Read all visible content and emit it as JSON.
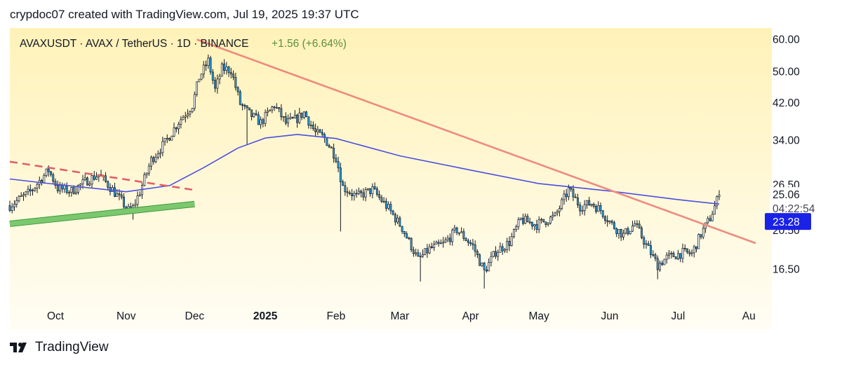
{
  "header": {
    "caption": "crypdoc07 created with TradingView.com, Jul 19, 2025 19:37 UTC"
  },
  "footer": {
    "brand": "TradingView",
    "logo_icon": "tradingview-logo-icon"
  },
  "colors": {
    "background_top": "#fff2b8",
    "background_bottom": "#fffdf4",
    "bull_candle": "#ffffff",
    "bear_candle": "#2aa7e6",
    "candle_outline": "#131722",
    "moving_average": "#4a4ee0",
    "downtrend_line": "#ee8a7f",
    "dashed_line": "#e0606a",
    "support_channel": "#7cc86f",
    "current_price_bg": "#1a22e6",
    "axis_text": "#131722"
  },
  "chart_data": {
    "type": "candlestick",
    "title": "AVAXUSDT · AVAX / TetherUS · 1D · BINANCE",
    "change": "+1.56 (+6.64%)",
    "price_axis": {
      "scale": "log",
      "range": [
        13.2,
        64
      ],
      "ticks": [
        "60.00",
        "50.00",
        "42.00",
        "34.00",
        "26.50",
        "20.50",
        "16.50"
      ]
    },
    "x_axis": {
      "ticks": [
        {
          "label": "Oct",
          "date": "2024-10-01"
        },
        {
          "label": "Nov",
          "date": "2024-11-01"
        },
        {
          "label": "Dec",
          "date": "2024-12-01"
        },
        {
          "label": "2025",
          "date": "2025-01-01",
          "bold": true
        },
        {
          "label": "Feb",
          "date": "2025-02-01"
        },
        {
          "label": "Mar",
          "date": "2025-03-01"
        },
        {
          "label": "Apr",
          "date": "2025-04-01"
        },
        {
          "label": "May",
          "date": "2025-05-01"
        },
        {
          "label": "Jun",
          "date": "2025-06-01"
        },
        {
          "label": "Jul",
          "date": "2025-07-01"
        },
        {
          "label": "Au",
          "date": "2025-08-01"
        }
      ]
    },
    "range_start": "2024-09-11",
    "range_end": "2025-08-08",
    "price_keypoints": [
      [
        "2024-09-11",
        23.6
      ],
      [
        "2024-09-20",
        25.5
      ],
      [
        "2024-09-28",
        28.8
      ],
      [
        "2024-10-02",
        26.0
      ],
      [
        "2024-10-08",
        25.6
      ],
      [
        "2024-10-15",
        27.2
      ],
      [
        "2024-10-20",
        28.1
      ],
      [
        "2024-10-26",
        25.8
      ],
      [
        "2024-11-03",
        22.6
      ],
      [
        "2024-11-07",
        25.5
      ],
      [
        "2024-11-12",
        30.5
      ],
      [
        "2024-11-18",
        33.6
      ],
      [
        "2024-11-24",
        37.8
      ],
      [
        "2024-11-30",
        41.5
      ],
      [
        "2024-12-03",
        48.5
      ],
      [
        "2024-12-07",
        53.2
      ],
      [
        "2024-12-10",
        45.2
      ],
      [
        "2024-12-13",
        51.0
      ],
      [
        "2024-12-17",
        50.5
      ],
      [
        "2024-12-21",
        41.8
      ],
      [
        "2024-12-25",
        39.5
      ],
      [
        "2024-12-30",
        37.6
      ],
      [
        "2025-01-05",
        41.5
      ],
      [
        "2025-01-10",
        37.5
      ],
      [
        "2025-01-15",
        38.5
      ],
      [
        "2025-01-18",
        39.8
      ],
      [
        "2025-01-23",
        35.5
      ],
      [
        "2025-01-27",
        34.5
      ],
      [
        "2025-02-01",
        31.0
      ],
      [
        "2025-02-04",
        26.2
      ],
      [
        "2025-02-10",
        24.8
      ],
      [
        "2025-02-17",
        25.8
      ],
      [
        "2025-02-24",
        23.2
      ],
      [
        "2025-03-02",
        20.8
      ],
      [
        "2025-03-09",
        17.4
      ],
      [
        "2025-03-14",
        18.5
      ],
      [
        "2025-03-20",
        19.0
      ],
      [
        "2025-03-26",
        20.6
      ],
      [
        "2025-04-02",
        18.8
      ],
      [
        "2025-04-07",
        16.3
      ],
      [
        "2025-04-12",
        18.2
      ],
      [
        "2025-04-18",
        19.2
      ],
      [
        "2025-04-23",
        21.8
      ],
      [
        "2025-04-30",
        21.2
      ],
      [
        "2025-05-08",
        22.2
      ],
      [
        "2025-05-14",
        25.8
      ],
      [
        "2025-05-19",
        23.5
      ],
      [
        "2025-05-24",
        23.9
      ],
      [
        "2025-05-28",
        23.0
      ],
      [
        "2025-06-02",
        21.2
      ],
      [
        "2025-06-07",
        20.0
      ],
      [
        "2025-06-12",
        21.3
      ],
      [
        "2025-06-17",
        18.9
      ],
      [
        "2025-06-22",
        16.9
      ],
      [
        "2025-06-26",
        17.6
      ],
      [
        "2025-07-03",
        18.1
      ],
      [
        "2025-07-07",
        18.0
      ],
      [
        "2025-07-11",
        20.1
      ],
      [
        "2025-07-15",
        22.0
      ],
      [
        "2025-07-19",
        25.06
      ]
    ],
    "wick_extremes": [
      {
        "date": "2024-11-04",
        "low": 21.8
      },
      {
        "date": "2024-12-24",
        "low": 33.2
      },
      {
        "date": "2025-01-27",
        "low": 33.6
      },
      {
        "date": "2025-02-03",
        "low": 20.4
      },
      {
        "date": "2025-03-10",
        "low": 15.4
      },
      {
        "date": "2025-04-07",
        "low": 14.8
      },
      {
        "date": "2025-06-22",
        "low": 15.6
      }
    ],
    "moving_average": [
      [
        "2024-09-11",
        27.4
      ],
      [
        "2024-10-01",
        26.6
      ],
      [
        "2024-11-01",
        25.5
      ],
      [
        "2024-11-20",
        26.4
      ],
      [
        "2024-12-05",
        29.2
      ],
      [
        "2024-12-20",
        32.6
      ],
      [
        "2025-01-01",
        34.5
      ],
      [
        "2025-01-15",
        35.2
      ],
      [
        "2025-02-01",
        34.4
      ],
      [
        "2025-03-01",
        31.2
      ],
      [
        "2025-04-01",
        28.8
      ],
      [
        "2025-05-01",
        26.7
      ],
      [
        "2025-06-01",
        25.6
      ],
      [
        "2025-07-01",
        24.4
      ],
      [
        "2025-07-19",
        23.8
      ]
    ],
    "trendlines": [
      {
        "name": "downtrend",
        "style": "solid",
        "from": [
          "2024-12-02",
          60.0
        ],
        "to": [
          "2025-08-04",
          19.1
        ]
      },
      {
        "name": "dashed-resistance",
        "style": "dashed",
        "from": [
          "2024-09-11",
          30.2
        ],
        "to": [
          "2024-11-30",
          25.8
        ]
      },
      {
        "name": "support-channel",
        "style": "channel",
        "from": [
          "2024-09-11",
          21.3
        ],
        "to": [
          "2024-12-01",
          23.8
        ]
      }
    ],
    "last_price": {
      "value": "25.06",
      "countdown": "04:22:54"
    },
    "price_marker": {
      "value": "23.28"
    }
  }
}
